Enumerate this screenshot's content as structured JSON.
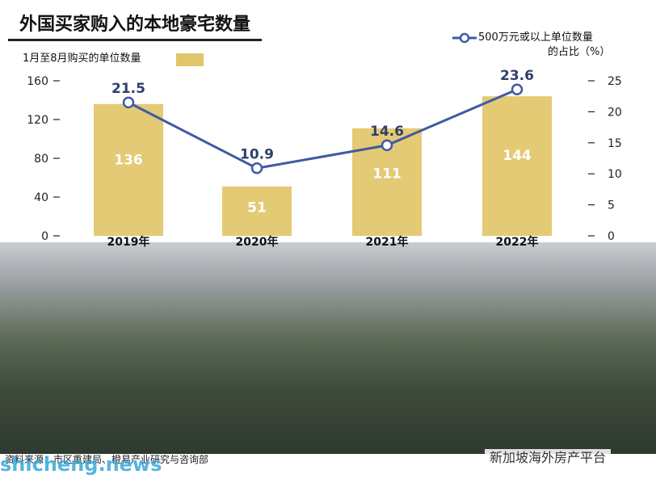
{
  "title": "外国买家购入的本地豪宅数量",
  "legend_bar_label": "1月至8月购买的单位数量",
  "legend_line_label_1": "500万元或以上单位数量",
  "legend_line_label_2": "的占比（%）",
  "footer_source": "资料来源：市区重建局、橙易产业研究与咨询部",
  "watermark_left": "shicheng.news",
  "watermark_right": "新加坡海外房产平台",
  "colors": {
    "bar": "#e2c568",
    "line": "#3f5aa3",
    "bar_label": "#ffffff",
    "line_label": "#2f3f6b"
  },
  "chart_data": {
    "type": "bar",
    "categories": [
      "2019年",
      "2020年",
      "2021年",
      "2022年"
    ],
    "series": [
      {
        "name": "1月至8月购买的单位数量",
        "type": "bar",
        "axis": "left",
        "values": [
          136,
          51,
          111,
          144
        ]
      },
      {
        "name": "500万元或以上单位数量的占比（%）",
        "type": "line",
        "axis": "right",
        "values": [
          21.5,
          10.9,
          14.6,
          23.6
        ]
      }
    ],
    "y_left": {
      "ticks": [
        0,
        40,
        80,
        120,
        160
      ],
      "lim": [
        0,
        160
      ]
    },
    "y_right": {
      "ticks": [
        0,
        5,
        10,
        15,
        20,
        25
      ],
      "lim": [
        0,
        25
      ]
    },
    "grid": false,
    "legend": "top"
  }
}
